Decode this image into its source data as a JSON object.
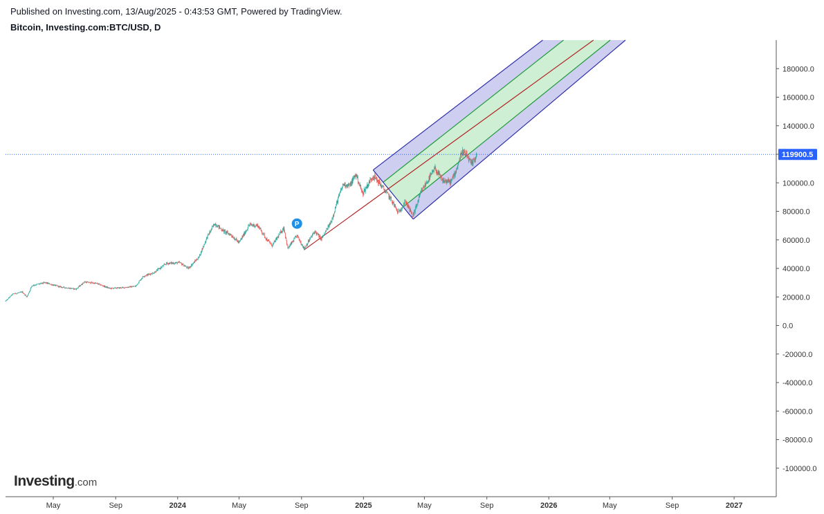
{
  "header": {
    "published_line": "Published on Investing.com, 13/Aug/2025 - 0:43:53 GMT, Powered by TradingView.",
    "symbol_line": "Bitcoin, Investing.com:BTC/USD, D"
  },
  "logo": {
    "main": "Investing",
    "suffix": ".com"
  },
  "colors": {
    "up": "#26a69a",
    "down": "#ef5350",
    "outer_band": "#2e2ea8",
    "inner_band": "#1f9a3a",
    "median": "#b22222",
    "price_line": "#2962ff",
    "label_bg": "#2962ff",
    "marker": "#1e90e6"
  },
  "chart_data": {
    "type": "candlestick",
    "ylim": [
      -120000,
      200000
    ],
    "y_ticks": [
      180000,
      160000,
      140000,
      120000,
      100000,
      80000,
      60000,
      40000,
      20000,
      0,
      -20000,
      -40000,
      -60000,
      -80000,
      -100000
    ],
    "y_tick_labels": [
      "180000.0",
      "160000.0",
      "140000.0",
      "120000.0",
      "100000.0",
      "80000.0",
      "60000.0",
      "40000.0",
      "20000.0",
      "0.0",
      "-20000.0",
      "-40000.0",
      "-60000.0",
      "-80000.0",
      "-100000.0"
    ],
    "xlim": [
      "2023-01-27",
      "2027-03-25"
    ],
    "x_ticks": [
      {
        "date": "2023-05-01",
        "label": "May",
        "bold": false
      },
      {
        "date": "2023-09-01",
        "label": "Sep",
        "bold": false
      },
      {
        "date": "2024-01-01",
        "label": "2024",
        "bold": true
      },
      {
        "date": "2024-05-01",
        "label": "May",
        "bold": false
      },
      {
        "date": "2024-09-01",
        "label": "Sep",
        "bold": false
      },
      {
        "date": "2025-01-01",
        "label": "2025",
        "bold": true
      },
      {
        "date": "2025-05-01",
        "label": "May",
        "bold": false
      },
      {
        "date": "2025-09-01",
        "label": "Sep",
        "bold": false
      },
      {
        "date": "2026-01-01",
        "label": "2026",
        "bold": true
      },
      {
        "date": "2026-05-01",
        "label": "May",
        "bold": false
      },
      {
        "date": "2026-09-01",
        "label": "Sep",
        "bold": false
      },
      {
        "date": "2027-01-01",
        "label": "2027",
        "bold": true
      }
    ],
    "last_price": 119900.5,
    "last_price_label": "119900.5",
    "price_series": [
      {
        "date": "2023-01-27",
        "close": 17000
      },
      {
        "date": "2023-02-10",
        "close": 22000
      },
      {
        "date": "2023-03-01",
        "close": 23500
      },
      {
        "date": "2023-03-10",
        "close": 20000
      },
      {
        "date": "2023-03-20",
        "close": 28000
      },
      {
        "date": "2023-04-15",
        "close": 30000
      },
      {
        "date": "2023-05-15",
        "close": 27000
      },
      {
        "date": "2023-06-15",
        "close": 25500
      },
      {
        "date": "2023-07-01",
        "close": 30500
      },
      {
        "date": "2023-07-25",
        "close": 29500
      },
      {
        "date": "2023-08-20",
        "close": 26000
      },
      {
        "date": "2023-09-15",
        "close": 26500
      },
      {
        "date": "2023-10-10",
        "close": 27500
      },
      {
        "date": "2023-10-25",
        "close": 34500
      },
      {
        "date": "2023-11-15",
        "close": 37000
      },
      {
        "date": "2023-12-10",
        "close": 43500
      },
      {
        "date": "2024-01-05",
        "close": 44000
      },
      {
        "date": "2024-01-22",
        "close": 40000
      },
      {
        "date": "2024-02-12",
        "close": 48000
      },
      {
        "date": "2024-02-28",
        "close": 62000
      },
      {
        "date": "2024-03-14",
        "close": 71500
      },
      {
        "date": "2024-04-01",
        "close": 66000
      },
      {
        "date": "2024-04-15",
        "close": 63500
      },
      {
        "date": "2024-05-01",
        "close": 58000
      },
      {
        "date": "2024-05-21",
        "close": 70500
      },
      {
        "date": "2024-06-07",
        "close": 70000
      },
      {
        "date": "2024-06-24",
        "close": 60500
      },
      {
        "date": "2024-07-05",
        "close": 56000
      },
      {
        "date": "2024-07-28",
        "close": 68500
      },
      {
        "date": "2024-08-05",
        "close": 54000
      },
      {
        "date": "2024-08-23",
        "close": 63000
      },
      {
        "date": "2024-09-06",
        "close": 54000
      },
      {
        "date": "2024-09-27",
        "close": 66000
      },
      {
        "date": "2024-10-10",
        "close": 60500
      },
      {
        "date": "2024-10-29",
        "close": 72500
      },
      {
        "date": "2024-11-13",
        "close": 90000
      },
      {
        "date": "2024-11-22",
        "close": 99000
      },
      {
        "date": "2024-12-05",
        "close": 98000
      },
      {
        "date": "2024-12-17",
        "close": 106000
      },
      {
        "date": "2024-12-30",
        "close": 92500
      },
      {
        "date": "2025-01-20",
        "close": 105000
      },
      {
        "date": "2025-02-01",
        "close": 100000
      },
      {
        "date": "2025-02-25",
        "close": 88000
      },
      {
        "date": "2025-03-10",
        "close": 79000
      },
      {
        "date": "2025-03-25",
        "close": 87000
      },
      {
        "date": "2025-04-08",
        "close": 76500
      },
      {
        "date": "2025-04-25",
        "close": 94000
      },
      {
        "date": "2025-05-10",
        "close": 103000
      },
      {
        "date": "2025-05-22",
        "close": 110000
      },
      {
        "date": "2025-06-05",
        "close": 101500
      },
      {
        "date": "2025-06-22",
        "close": 100500
      },
      {
        "date": "2025-07-01",
        "close": 107500
      },
      {
        "date": "2025-07-14",
        "close": 122000
      },
      {
        "date": "2025-07-25",
        "close": 118000
      },
      {
        "date": "2025-08-02",
        "close": 112500
      },
      {
        "date": "2025-08-12",
        "close": 119900.5
      }
    ],
    "pitchfork": {
      "pivot_1": {
        "date": "2024-09-06",
        "price": 53000
      },
      "pivot_2": {
        "date": "2025-01-20",
        "price": 109000
      },
      "pivot_3": {
        "date": "2025-04-09",
        "price": 74500
      },
      "median_end": {
        "date": "2026-03-30",
        "price": 200000
      },
      "outer_top_end": {
        "date": "2025-12-20",
        "price": 200000
      },
      "inner_top_end": {
        "date": "2026-01-30",
        "price": 200000
      },
      "inner_bottom_end": {
        "date": "2026-05-02",
        "price": 200000
      },
      "outer_bottom_end": {
        "date": "2026-06-01",
        "price": 200000
      }
    },
    "marker": {
      "date": "2024-08-23",
      "price": 68500,
      "label": "P"
    }
  }
}
